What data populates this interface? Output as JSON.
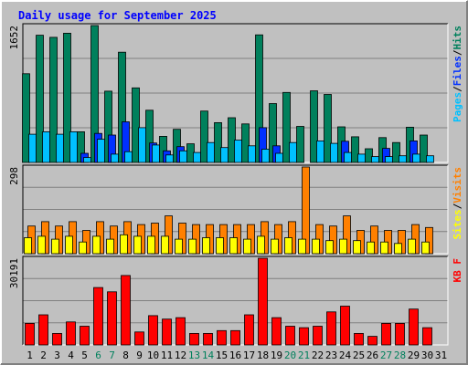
{
  "chart_data": {
    "type": "bar",
    "title": "Daily usage for September 2025",
    "days": [
      "1",
      "2",
      "3",
      "4",
      "5",
      "6",
      "7",
      "8",
      "9",
      "10",
      "11",
      "12",
      "13",
      "14",
      "15",
      "16",
      "17",
      "18",
      "19",
      "20",
      "21",
      "22",
      "23",
      "24",
      "25",
      "26",
      "27",
      "28",
      "29",
      "30",
      "31"
    ],
    "weekend_days": [
      "6",
      "7",
      "13",
      "14",
      "20",
      "21",
      "27",
      "28"
    ],
    "panels": [
      {
        "id": "hits-files-pages",
        "max_label": "1652",
        "ymax": 1652,
        "side_label": [
          "Pages",
          "Files",
          "Hits"
        ],
        "series": [
          {
            "name": "Hits",
            "color": "#00805c",
            "values": [
              1070,
              1535,
              1510,
              1560,
              370,
              1652,
              860,
              1330,
              900,
              630,
              315,
              400,
              225,
              620,
              480,
              540,
              465,
              1540,
              710,
              845,
              435,
              865,
              820,
              430,
              310,
              165,
              300,
              240,
              425,
              330,
              0
            ]
          },
          {
            "name": "Files",
            "color": "#0030ff",
            "values": [
              0,
              0,
              0,
              0,
              110,
              350,
              330,
              490,
              0,
              235,
              140,
              190,
              0,
              0,
              0,
              0,
              0,
              420,
              200,
              0,
              0,
              0,
              0,
              255,
              0,
              0,
              170,
              0,
              260,
              0,
              0
            ]
          },
          {
            "name": "Pages",
            "color": "#00c0ff",
            "values": [
              340,
              370,
              340,
              370,
              60,
              280,
              100,
              130,
              420,
              210,
              90,
              140,
              120,
              240,
              180,
              270,
              200,
              160,
              110,
              240,
              0,
              260,
              230,
              120,
              100,
              70,
              70,
              80,
              100,
              80,
              0
            ]
          }
        ]
      },
      {
        "id": "visits-sites",
        "max_label": "298",
        "ymax": 298,
        "side_label": [
          "Sites",
          "Visits"
        ],
        "series": [
          {
            "name": "Visits",
            "color": "#ff8000",
            "values": [
              95,
              110,
              95,
              110,
              80,
              110,
              95,
              110,
              100,
              105,
              130,
              105,
              100,
              100,
              100,
              100,
              100,
              110,
              100,
              110,
              298,
              100,
              95,
              130,
              80,
              95,
              80,
              80,
              100,
              90,
              0
            ]
          },
          {
            "name": "Sites",
            "color": "#ffff00",
            "values": [
              55,
              60,
              50,
              60,
              40,
              60,
              50,
              65,
              60,
              60,
              60,
              50,
              50,
              55,
              55,
              55,
              50,
              60,
              50,
              55,
              50,
              50,
              45,
              50,
              45,
              40,
              40,
              35,
              50,
              40,
              0
            ]
          }
        ]
      },
      {
        "id": "kbytes",
        "max_label": "30191",
        "ymax": 30191,
        "side_label": [
          "KB F"
        ],
        "series": [
          {
            "name": "KB F",
            "color": "#ff0000",
            "values": [
              7500,
              10500,
              4000,
              8000,
              6500,
              20000,
              18500,
              24200,
              4500,
              10200,
              9000,
              9500,
              4000,
              4000,
              5000,
              5000,
              10500,
              30191,
              9500,
              6500,
              6000,
              6500,
              11500,
              13500,
              4000,
              3000,
              7500,
              7500,
              12500,
              6000,
              0
            ]
          }
        ]
      }
    ],
    "colors": {
      "background": "#c0c0c0",
      "plot_area": "#c0c0c0",
      "grid": "#808080",
      "title": "#0000ff",
      "weekday_label": "#000000",
      "weekend_label": "#00805c",
      "bevel_light": "#ffffff",
      "bevel_dark": "#808080"
    }
  }
}
